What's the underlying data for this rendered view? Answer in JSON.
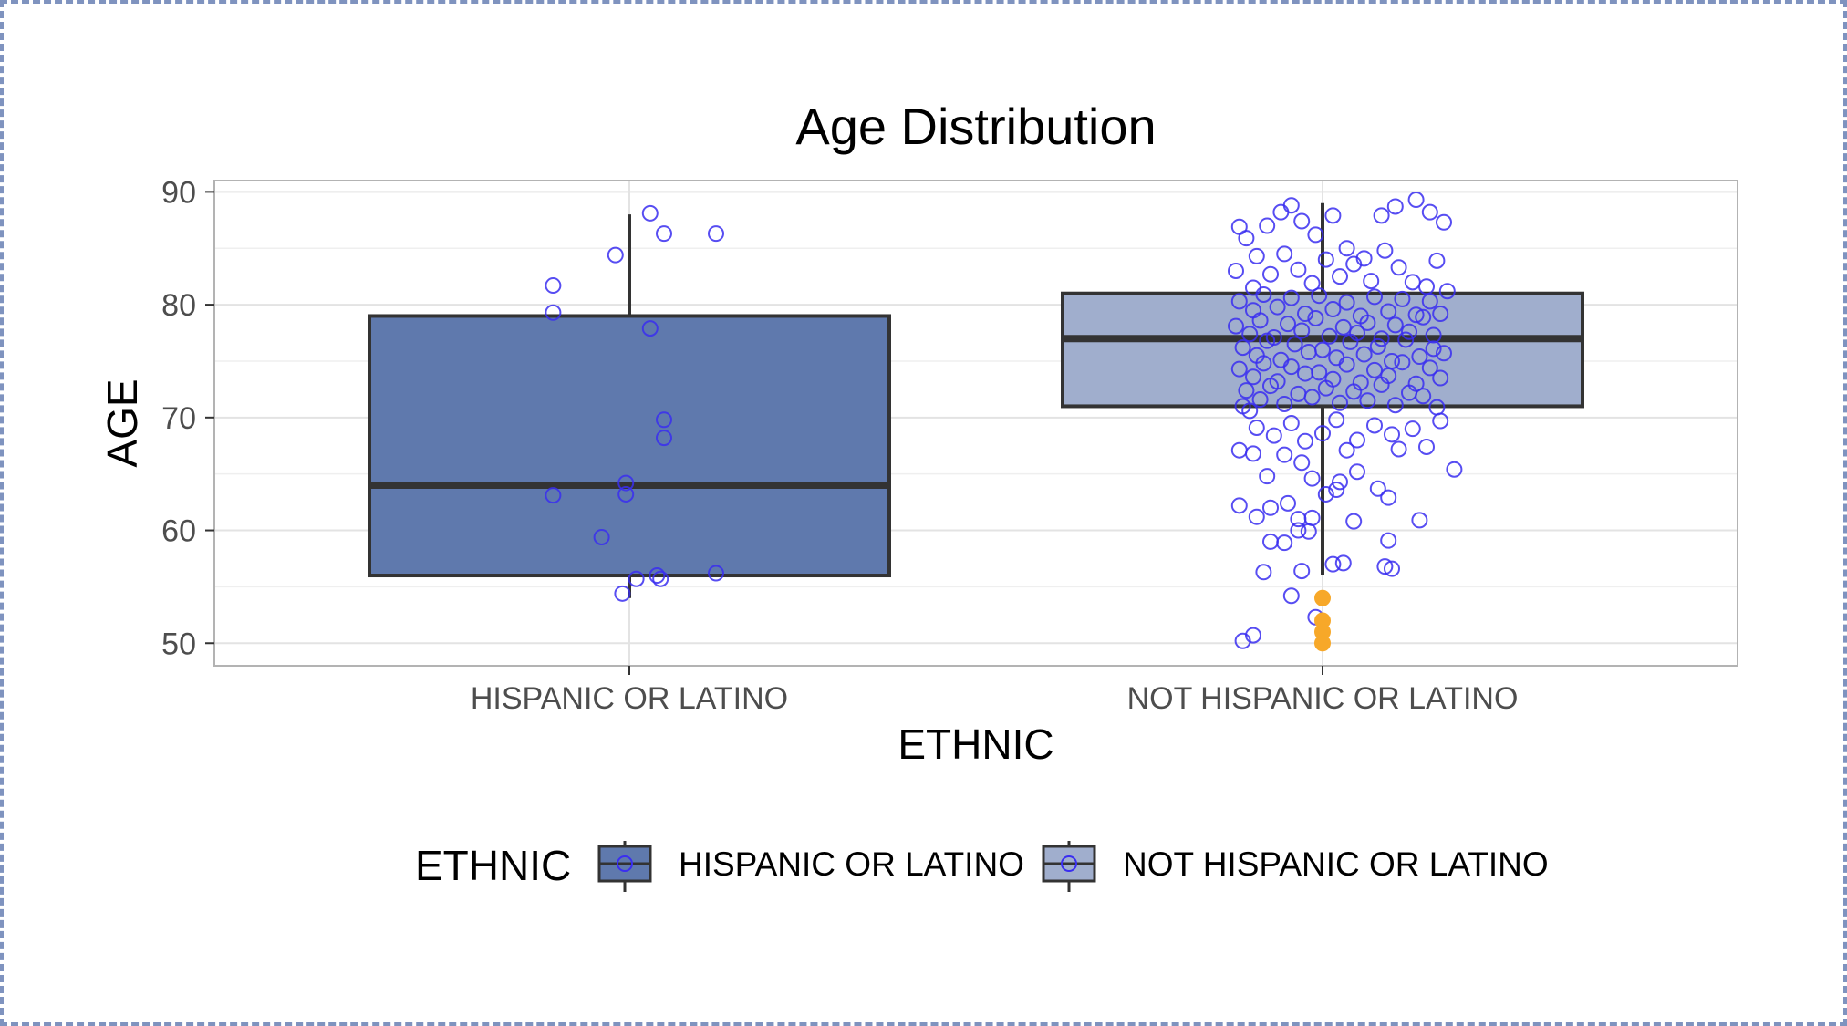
{
  "colors": {
    "hispanic_fill": "#5f79ad",
    "not_hispanic_fill": "#a0aecd",
    "box_stroke": "#333333",
    "point_stroke": "#3a2ef0",
    "outlier_fill": "#f7a829",
    "grid": "#e3e3e3",
    "panel_border": "#b3b3b3"
  },
  "chart_data": {
    "type": "boxplot",
    "title": "Age Distribution",
    "xlabel": "ETHNIC",
    "ylabel": "AGE",
    "ylim": [
      48,
      91
    ],
    "yticks": [
      50,
      60,
      70,
      80,
      90
    ],
    "grid": true,
    "legend": {
      "title": "ETHNIC",
      "position": "bottom",
      "entries": [
        "HISPANIC OR LATINO",
        "NOT HISPANIC OR LATINO"
      ]
    },
    "categories": [
      "HISPANIC OR LATINO",
      "NOT HISPANIC OR LATINO"
    ],
    "boxes": [
      {
        "category": "HISPANIC OR LATINO",
        "whisker_low": 54,
        "q1": 56,
        "median": 64,
        "q3": 79,
        "whisker_high": 88,
        "outliers": []
      },
      {
        "category": "NOT HISPANIC OR LATINO",
        "whisker_low": 56,
        "q1": 71,
        "median": 77,
        "q3": 81,
        "whisker_high": 89,
        "outliers": [
          54,
          52,
          51,
          50
        ]
      }
    ],
    "jitter_points": [
      {
        "category": "HISPANIC OR LATINO",
        "points": [
          [
            -0.22,
            81.7
          ],
          [
            -0.22,
            79.3
          ],
          [
            -0.22,
            63.1
          ],
          [
            -0.04,
            84.4
          ],
          [
            0.06,
            88.1
          ],
          [
            0.1,
            86.3
          ],
          [
            0.06,
            77.9
          ],
          [
            0.1,
            69.8
          ],
          [
            0.1,
            68.2
          ],
          [
            -0.01,
            64.2
          ],
          [
            -0.01,
            63.2
          ],
          [
            -0.08,
            59.4
          ],
          [
            -0.02,
            54.4
          ],
          [
            0.02,
            55.7
          ],
          [
            0.08,
            56.0
          ],
          [
            0.09,
            55.7
          ],
          [
            0.25,
            86.3
          ],
          [
            0.25,
            56.2
          ]
        ]
      },
      {
        "category": "NOT HISPANIC OR LATINO",
        "points": [
          [
            -0.24,
            86.9
          ],
          [
            -0.22,
            85.9
          ],
          [
            -0.19,
            84.3
          ],
          [
            -0.16,
            87.0
          ],
          [
            -0.12,
            88.2
          ],
          [
            -0.09,
            88.8
          ],
          [
            -0.06,
            87.4
          ],
          [
            -0.02,
            86.2
          ],
          [
            0.03,
            87.9
          ],
          [
            0.07,
            85.0
          ],
          [
            0.12,
            84.1
          ],
          [
            0.17,
            87.9
          ],
          [
            0.21,
            88.7
          ],
          [
            0.27,
            89.3
          ],
          [
            0.31,
            88.2
          ],
          [
            0.35,
            87.3
          ],
          [
            -0.25,
            83.0
          ],
          [
            -0.2,
            81.5
          ],
          [
            -0.15,
            82.7
          ],
          [
            -0.11,
            84.5
          ],
          [
            -0.07,
            83.1
          ],
          [
            -0.03,
            81.9
          ],
          [
            0.01,
            84.0
          ],
          [
            0.05,
            82.5
          ],
          [
            0.09,
            83.6
          ],
          [
            0.14,
            82.1
          ],
          [
            0.18,
            84.8
          ],
          [
            0.22,
            83.3
          ],
          [
            0.26,
            82.0
          ],
          [
            0.3,
            81.6
          ],
          [
            0.33,
            83.9
          ],
          [
            0.36,
            81.2
          ],
          [
            -0.24,
            80.3
          ],
          [
            -0.2,
            79.5
          ],
          [
            -0.17,
            80.9
          ],
          [
            -0.13,
            79.8
          ],
          [
            -0.09,
            80.6
          ],
          [
            -0.05,
            79.2
          ],
          [
            -0.01,
            80.8
          ],
          [
            0.03,
            79.6
          ],
          [
            0.07,
            80.2
          ],
          [
            0.11,
            79.0
          ],
          [
            0.15,
            80.7
          ],
          [
            0.19,
            79.4
          ],
          [
            0.23,
            80.5
          ],
          [
            0.27,
            79.1
          ],
          [
            0.31,
            80.3
          ],
          [
            0.34,
            79.2
          ],
          [
            -0.25,
            78.1
          ],
          [
            -0.21,
            77.4
          ],
          [
            -0.18,
            78.6
          ],
          [
            -0.14,
            77.1
          ],
          [
            -0.1,
            78.3
          ],
          [
            -0.06,
            77.7
          ],
          [
            -0.02,
            78.8
          ],
          [
            0.02,
            77.2
          ],
          [
            0.06,
            78.0
          ],
          [
            0.1,
            77.5
          ],
          [
            0.13,
            78.4
          ],
          [
            0.17,
            77.0
          ],
          [
            0.21,
            78.2
          ],
          [
            0.25,
            77.6
          ],
          [
            0.29,
            78.9
          ],
          [
            0.32,
            77.3
          ],
          [
            -0.23,
            76.2
          ],
          [
            -0.19,
            75.5
          ],
          [
            -0.16,
            76.8
          ],
          [
            -0.12,
            75.1
          ],
          [
            -0.08,
            76.5
          ],
          [
            -0.04,
            75.8
          ],
          [
            0.0,
            76.0
          ],
          [
            0.04,
            75.3
          ],
          [
            0.08,
            76.7
          ],
          [
            0.12,
            75.6
          ],
          [
            0.16,
            76.3
          ],
          [
            0.2,
            75.0
          ],
          [
            0.24,
            76.9
          ],
          [
            0.28,
            75.4
          ],
          [
            0.32,
            76.1
          ],
          [
            0.35,
            75.7
          ],
          [
            -0.24,
            74.3
          ],
          [
            -0.2,
            73.6
          ],
          [
            -0.17,
            74.8
          ],
          [
            -0.13,
            73.2
          ],
          [
            -0.09,
            74.5
          ],
          [
            -0.05,
            73.9
          ],
          [
            -0.01,
            74.0
          ],
          [
            0.03,
            73.4
          ],
          [
            0.07,
            74.7
          ],
          [
            0.11,
            73.1
          ],
          [
            0.15,
            74.2
          ],
          [
            0.19,
            73.7
          ],
          [
            0.23,
            74.9
          ],
          [
            0.27,
            73.0
          ],
          [
            0.31,
            74.4
          ],
          [
            0.34,
            73.5
          ],
          [
            -0.22,
            72.4
          ],
          [
            -0.18,
            71.6
          ],
          [
            -0.15,
            72.8
          ],
          [
            -0.11,
            71.2
          ],
          [
            -0.07,
            72.1
          ],
          [
            -0.03,
            71.8
          ],
          [
            0.01,
            72.6
          ],
          [
            0.05,
            71.3
          ],
          [
            0.09,
            72.3
          ],
          [
            0.13,
            71.5
          ],
          [
            0.17,
            72.9
          ],
          [
            0.21,
            71.1
          ],
          [
            0.25,
            72.2
          ],
          [
            0.29,
            71.9
          ],
          [
            0.33,
            70.9
          ],
          [
            -0.21,
            70.6
          ],
          [
            -0.23,
            71.0
          ],
          [
            -0.19,
            69.1
          ],
          [
            -0.14,
            68.4
          ],
          [
            -0.09,
            69.5
          ],
          [
            -0.05,
            67.9
          ],
          [
            0.0,
            68.6
          ],
          [
            0.04,
            69.8
          ],
          [
            0.1,
            68.0
          ],
          [
            0.15,
            69.3
          ],
          [
            0.2,
            68.5
          ],
          [
            0.26,
            69.0
          ],
          [
            0.3,
            67.4
          ],
          [
            0.34,
            69.7
          ],
          [
            -0.24,
            67.1
          ],
          [
            -0.2,
            66.8
          ],
          [
            -0.11,
            66.7
          ],
          [
            -0.06,
            66.0
          ],
          [
            0.07,
            67.1
          ],
          [
            0.22,
            67.2
          ],
          [
            -0.16,
            64.8
          ],
          [
            -0.03,
            64.6
          ],
          [
            0.04,
            63.6
          ],
          [
            0.1,
            65.2
          ],
          [
            0.38,
            65.4
          ],
          [
            -0.24,
            62.2
          ],
          [
            -0.19,
            61.2
          ],
          [
            -0.15,
            62.0
          ],
          [
            -0.1,
            62.4
          ],
          [
            -0.07,
            61.0
          ],
          [
            -0.03,
            61.1
          ],
          [
            0.01,
            63.2
          ],
          [
            0.05,
            64.3
          ],
          [
            0.09,
            60.8
          ],
          [
            0.16,
            63.7
          ],
          [
            0.19,
            62.9
          ],
          [
            0.28,
            60.9
          ],
          [
            -0.07,
            60.0
          ],
          [
            -0.04,
            59.9
          ],
          [
            -0.15,
            59.0
          ],
          [
            -0.11,
            58.9
          ],
          [
            0.19,
            59.1
          ],
          [
            -0.17,
            56.3
          ],
          [
            -0.06,
            56.4
          ],
          [
            0.03,
            57.0
          ],
          [
            0.06,
            57.1
          ],
          [
            0.18,
            56.8
          ],
          [
            0.2,
            56.6
          ],
          [
            -0.09,
            54.2
          ],
          [
            -0.2,
            50.7
          ],
          [
            -0.23,
            50.2
          ],
          [
            -0.02,
            52.3
          ]
        ]
      }
    ]
  }
}
